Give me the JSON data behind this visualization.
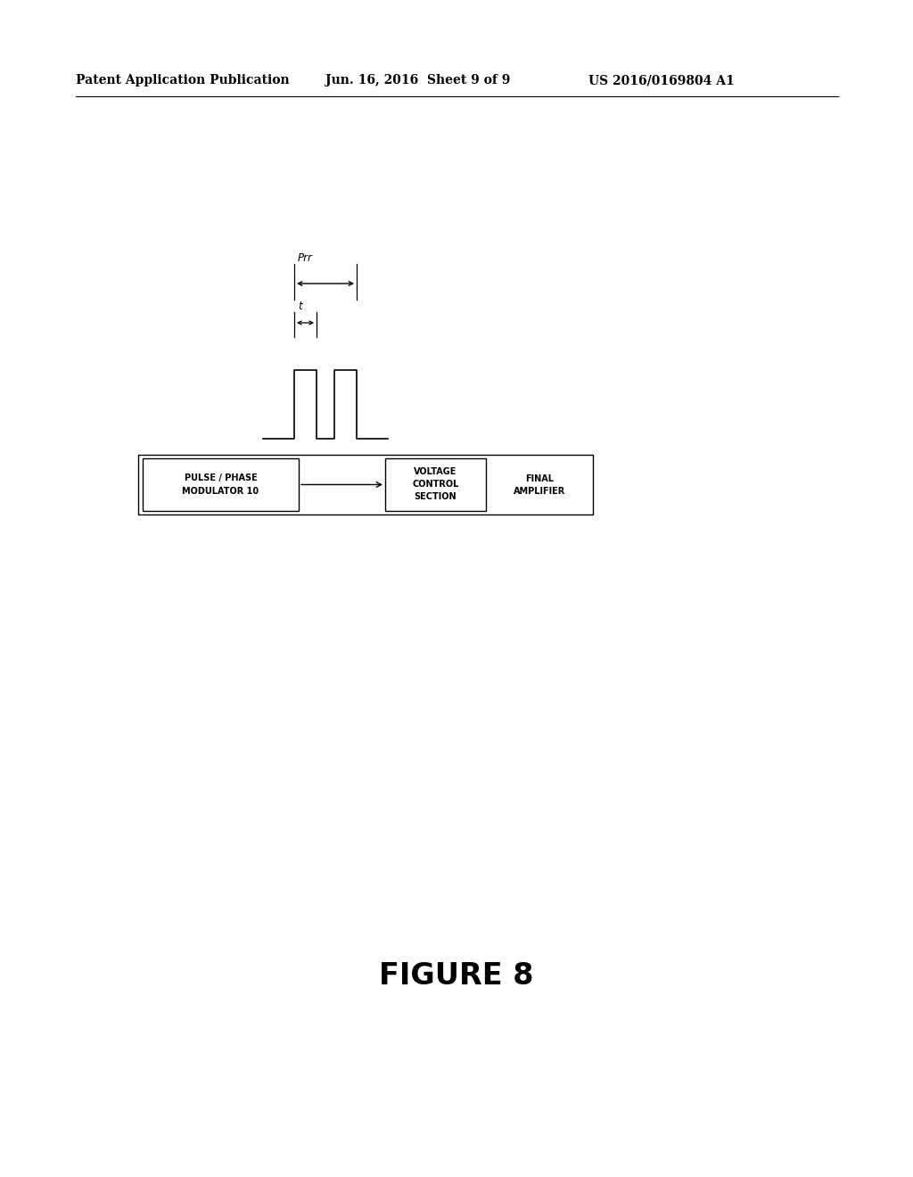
{
  "bg_color": "#ffffff",
  "header_left": "Patent Application Publication",
  "header_mid": "Jun. 16, 2016  Sheet 9 of 9",
  "header_right": "US 2016/0169804 A1",
  "figure_caption": "FIGURE 8",
  "line_color": "#000000",
  "text_color": "#000000",
  "font_size_header": 10,
  "font_size_box": 7,
  "font_size_caption": 24,
  "font_size_prr": 8.5,
  "font_size_t": 8.5,
  "pulse_box_text1": "PULSE / PHASE",
  "pulse_box_text2": "MODULATOR 10",
  "inner_box_text1": "VOLTAGE",
  "inner_box_text2": "CONTROL",
  "inner_box_text3": "SECTION",
  "final_amp_text1": "FINAL",
  "final_amp_text2": "AMPLIFIER",
  "prr_label": "Prr",
  "t_label": "t"
}
